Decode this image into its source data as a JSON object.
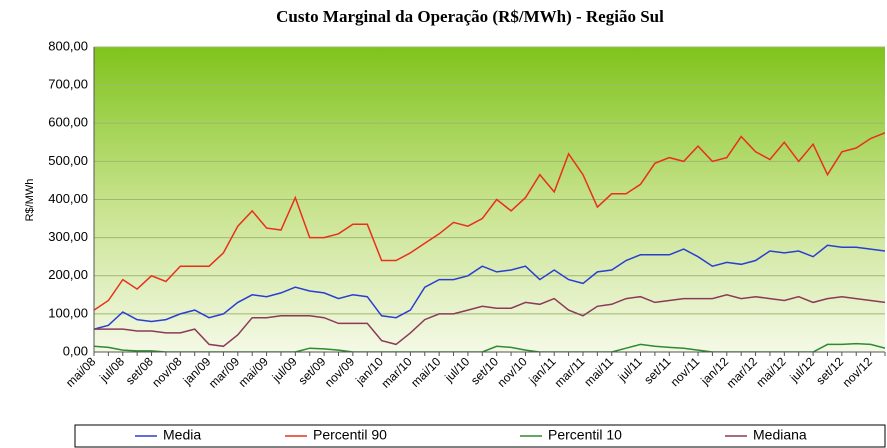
{
  "chart_data": {
    "type": "line",
    "title": "Custo Marginal da Operação (R$/MWh) - Região Sul",
    "y_label": "R$/MWh",
    "categories": [
      "mai/08",
      null,
      "jul/08",
      null,
      "set/08",
      null,
      "nov/08",
      null,
      "jan/09",
      null,
      "mar/09",
      null,
      "mai/09",
      null,
      "jul/09",
      null,
      "set/09",
      null,
      "nov/09",
      null,
      "jan/10",
      null,
      "mar/10",
      null,
      "mai/10",
      null,
      "jul/10",
      null,
      "set/10",
      null,
      "nov/10",
      null,
      "jan/11",
      null,
      "mar/11",
      null,
      "mai/11",
      null,
      "jul/11",
      null,
      "set/11",
      null,
      "nov/11",
      null,
      "jan/12",
      null,
      "mar/12",
      null,
      "mai/12",
      null,
      "jul/12",
      null,
      "set/12",
      null,
      "nov/12",
      null
    ],
    "series": [
      {
        "name": "Media",
        "color": "#2a3fd0",
        "values": [
          60,
          70,
          105,
          85,
          80,
          85,
          100,
          110,
          90,
          100,
          130,
          150,
          145,
          155,
          170,
          160,
          155,
          140,
          150,
          145,
          95,
          90,
          110,
          170,
          190,
          190,
          200,
          225,
          210,
          215,
          225,
          190,
          215,
          190,
          180,
          210,
          215,
          240,
          255,
          255,
          255,
          270,
          250,
          225,
          235,
          230,
          240,
          265,
          260,
          265,
          250,
          280,
          275,
          275,
          270,
          265
        ]
      },
      {
        "name": "Percentil 90",
        "color": "#e8301c",
        "values": [
          110,
          135,
          190,
          165,
          200,
          185,
          225,
          225,
          225,
          260,
          330,
          370,
          325,
          320,
          405,
          300,
          300,
          310,
          335,
          335,
          240,
          240,
          260,
          285,
          310,
          340,
          330,
          350,
          400,
          370,
          405,
          465,
          420,
          520,
          465,
          380,
          415,
          415,
          440,
          495,
          510,
          500,
          540,
          500,
          510,
          565,
          525,
          505,
          550,
          500,
          545,
          465,
          525,
          535,
          560,
          575
        ]
      },
      {
        "name": "Percentil 10",
        "color": "#2e8b2e",
        "values": [
          15,
          12,
          5,
          3,
          3,
          0,
          0,
          0,
          0,
          0,
          0,
          0,
          0,
          0,
          0,
          10,
          8,
          5,
          0,
          0,
          0,
          0,
          0,
          0,
          0,
          0,
          0,
          0,
          15,
          12,
          5,
          0,
          0,
          0,
          0,
          0,
          0,
          10,
          20,
          15,
          12,
          10,
          5,
          0,
          0,
          0,
          0,
          0,
          0,
          0,
          0,
          20,
          20,
          22,
          20,
          10
        ]
      },
      {
        "name": "Mediana",
        "color": "#8b3a5a",
        "values": [
          60,
          60,
          60,
          55,
          55,
          50,
          50,
          60,
          20,
          15,
          45,
          90,
          90,
          95,
          95,
          95,
          90,
          75,
          75,
          75,
          30,
          20,
          50,
          85,
          100,
          100,
          110,
          120,
          115,
          115,
          130,
          125,
          140,
          110,
          95,
          120,
          125,
          140,
          145,
          130,
          135,
          140,
          140,
          140,
          150,
          140,
          145,
          140,
          135,
          145,
          130,
          140,
          145,
          140,
          135,
          130
        ]
      }
    ],
    "ylim": [
      0,
      800
    ],
    "yticks": [
      {
        "value": 0,
        "label": "0,00"
      },
      {
        "value": 100,
        "label": "100,00"
      },
      {
        "value": 200,
        "label": "200,00"
      },
      {
        "value": 300,
        "label": "300,00"
      },
      {
        "value": 400,
        "label": "400,00"
      },
      {
        "value": 500,
        "label": "500,00"
      },
      {
        "value": 600,
        "label": "600,00"
      },
      {
        "value": 700,
        "label": "700,00"
      },
      {
        "value": 800,
        "label": "800,00"
      }
    ],
    "grid": true
  }
}
